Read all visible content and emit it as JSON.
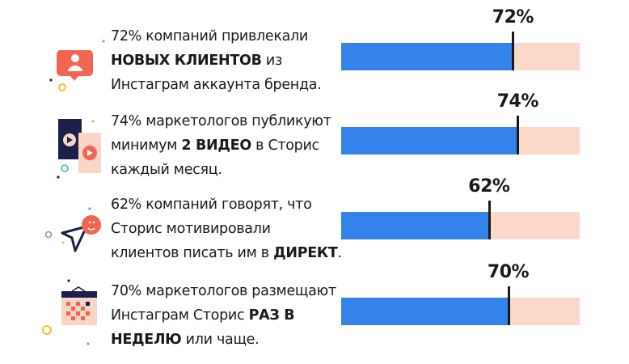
{
  "colors": {
    "fill": "#3483eb",
    "track": "#fad9cb",
    "marker": "#1a1a1a",
    "accent": "#f26651",
    "navy": "#1c1f4a"
  },
  "chart_data": {
    "type": "bar",
    "orientation": "horizontal",
    "xlim": [
      0,
      100
    ],
    "categories": [
      "новые клиенты",
      "2 видео",
      "директ",
      "раз в неделю"
    ],
    "values": [
      72,
      74,
      62,
      70
    ],
    "data_labels": [
      "72%",
      "74%",
      "62%",
      "70%"
    ]
  },
  "rows": [
    {
      "icon": "user-notification-icon",
      "label": "72%",
      "lines": [
        [
          {
            "t": "72% компаний привлекали",
            "b": false
          }
        ],
        [
          {
            "t": "НОВЫХ КЛИЕНТОВ",
            "b": true
          },
          {
            "t": " из",
            "b": false
          }
        ],
        [
          {
            "t": "Инстаграм аккаунта бренда.",
            "b": false
          }
        ]
      ]
    },
    {
      "icon": "video-stories-icon",
      "label": "74%",
      "lines": [
        [
          {
            "t": "74% маркетологов публикуют",
            "b": false
          }
        ],
        [
          {
            "t": "минимум ",
            "b": false
          },
          {
            "t": "2 ВИДЕО",
            "b": true
          },
          {
            "t": " в Сторис",
            "b": false
          }
        ],
        [
          {
            "t": "каждый месяц.",
            "b": false
          }
        ]
      ]
    },
    {
      "icon": "direct-message-icon",
      "label": "62%",
      "lines": [
        [
          {
            "t": "62% компаний говорят, что",
            "b": false
          }
        ],
        [
          {
            "t": "Сторис мотивировали",
            "b": false
          }
        ],
        [
          {
            "t": "клиентов писать им в ",
            "b": false
          },
          {
            "t": "ДИРЕКТ",
            "b": true
          },
          {
            "t": ".",
            "b": false
          }
        ]
      ]
    },
    {
      "icon": "calendar-icon",
      "label": "70%",
      "lines": [
        [
          {
            "t": "70% маркетологов размещают",
            "b": false
          }
        ],
        [
          {
            "t": "Инстаграм Сторис ",
            "b": false
          },
          {
            "t": "РАЗ В",
            "b": true
          }
        ],
        [
          {
            "t": "НЕДЕЛЮ",
            "b": true
          },
          {
            "t": " или чаще.",
            "b": false
          }
        ]
      ]
    }
  ]
}
